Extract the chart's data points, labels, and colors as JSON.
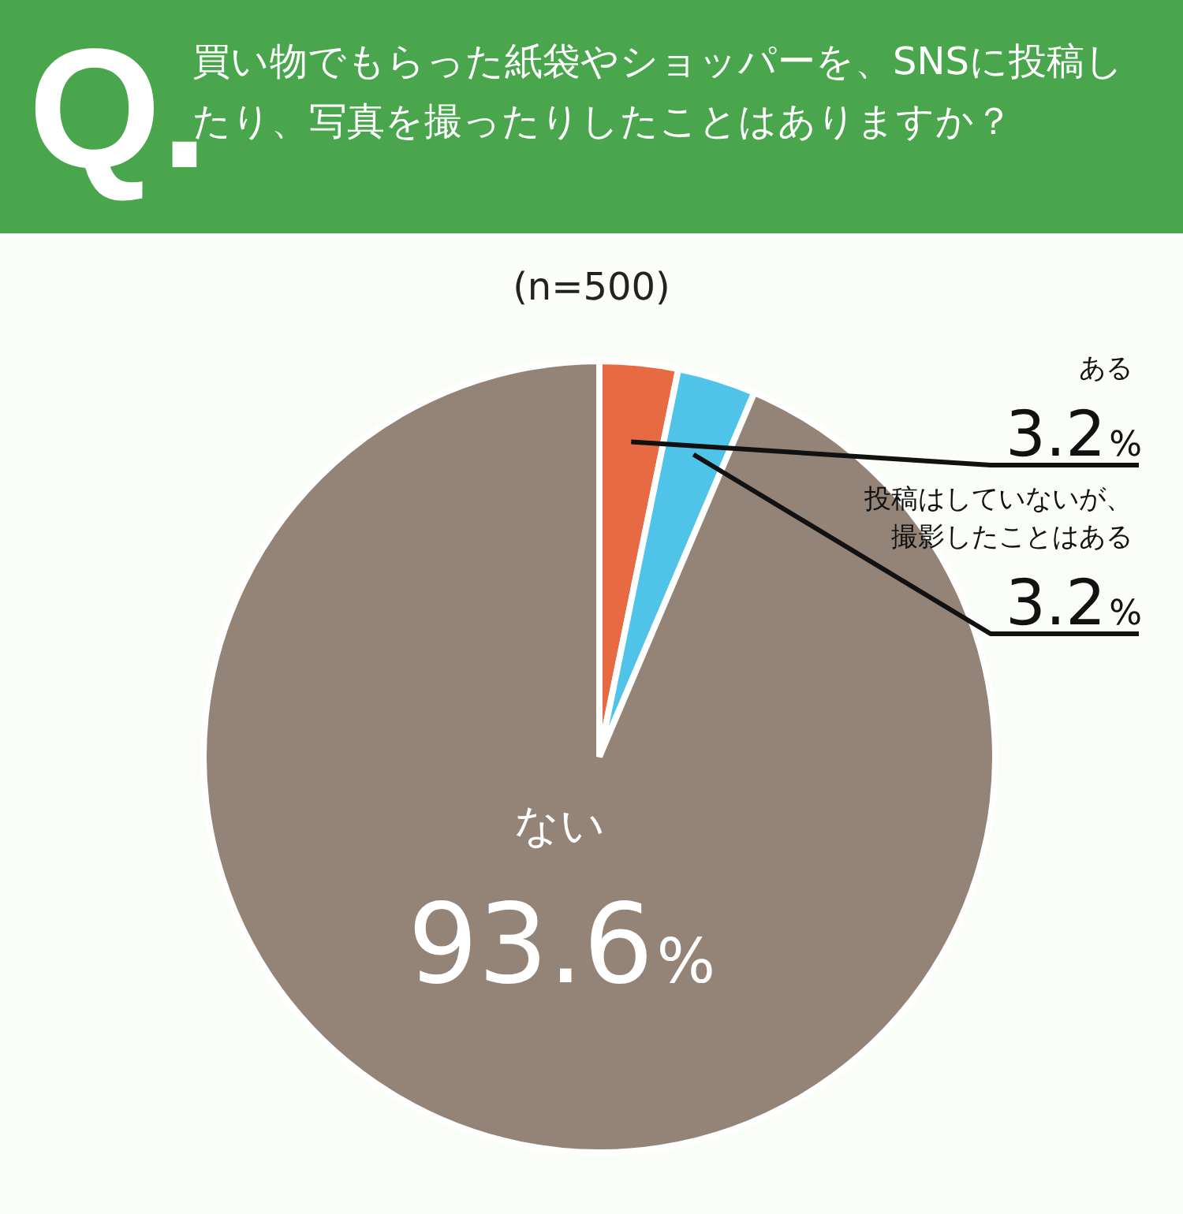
{
  "chart_data": {
    "type": "pie",
    "title": "買い物でもらった紙袋やショッパーを、SNSに投稿したり、写真を撮ったりしたことはありますか？",
    "subtitle": "(n=500)",
    "annotations": [
      "Q."
    ],
    "categories": [
      "ある",
      "投稿はしていないが、撮影したことはある",
      "ない"
    ],
    "values": [
      3.2,
      3.2,
      93.6
    ],
    "colors": [
      "#e86a43",
      "#4fc3e8",
      "#948377"
    ],
    "value_labels": [
      "3.2%",
      "3.2%",
      "93.6%"
    ],
    "legend": false
  }
}
